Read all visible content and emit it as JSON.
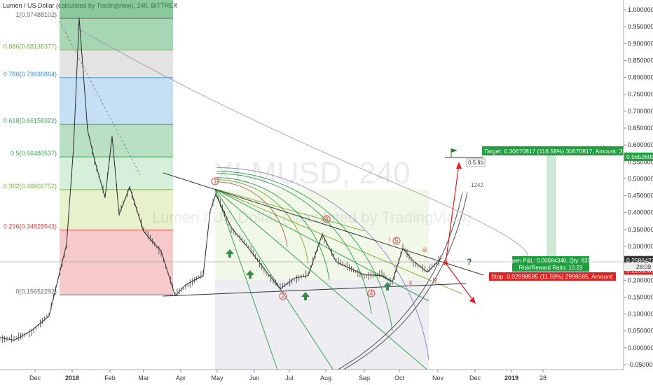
{
  "header": {
    "title": "Lumen / US Dollar (calculated by TradingView), 240, BITTREX"
  },
  "watermark": {
    "symbol": "XLMUSD, 240",
    "subtitle": "Lumen / US Dollar (calculated by TradingView)"
  },
  "chart_data": {
    "type": "line",
    "title": "Lumen / US Dollar (calculated by TradingView), 240, BITTREX",
    "yaxis": {
      "ticks": [
        "1.00000000",
        "0.95000000",
        "0.90000000",
        "0.85000000",
        "0.80000000",
        "0.75000000",
        "0.70000000",
        "0.65000000",
        "0.60000000",
        "0.55000000",
        "0.50000000",
        "0.45000000",
        "0.40000000",
        "0.35000000",
        "0.30000000",
        "0.25000000",
        "0.20000000",
        "0.15000000",
        "0.10000000",
        "0.05000000",
        "0.00000000",
        "-0.05000000"
      ],
      "range": [
        -0.065,
        1.03
      ]
    },
    "xaxis": {
      "ticks": [
        "Dec",
        "2018",
        "Feb",
        "Mar",
        "Apr",
        "May",
        "Jun",
        "Jul",
        "Aug",
        "Sep",
        "Oct",
        "Nov",
        "Dec",
        "2019",
        "28"
      ]
    },
    "fib_levels": [
      {
        "label": "1(0.97488102)",
        "value": 0.97488102,
        "color": "#6b6b6b"
      },
      {
        "label": "0.886(0.88138377)",
        "value": 0.88138377,
        "color": "#7fb241"
      },
      {
        "label": "0.786(0.79936864)",
        "value": 0.79936864,
        "color": "#3a8fd0"
      },
      {
        "label": "0.618(0.66158322)",
        "value": 0.66158322,
        "color": "#3aa556"
      },
      {
        "label": "0.5(0.56480537)",
        "value": 0.56480537,
        "color": "#3aa556"
      },
      {
        "label": "0.382(0.46802752)",
        "value": 0.46802752,
        "color": "#7fb241"
      },
      {
        "label": "0.236(0.34828543)",
        "value": 0.34828543,
        "color": "#d64545"
      },
      {
        "label": "0(0.15652292)",
        "value": 0.15652292,
        "color": "#6b6b6b"
      }
    ],
    "price_series": [
      [
        "Dec",
        0.025
      ],
      [
        "Dec-mid",
        0.04
      ],
      [
        "Dec-late",
        0.1
      ],
      [
        "Jan-early",
        0.3
      ],
      [
        "Jan-peak",
        0.97
      ],
      [
        "Jan-mid",
        0.7
      ],
      [
        "Jan-late",
        0.55
      ],
      [
        "Feb-early",
        0.45
      ],
      [
        "Feb-mid",
        0.6
      ],
      [
        "Feb-late",
        0.38
      ],
      [
        "Mar-early",
        0.35
      ],
      [
        "Mar-mid",
        0.22
      ],
      [
        "Mar-late",
        0.16
      ],
      [
        "Apr-early",
        0.18
      ],
      [
        "Apr-mid",
        0.24
      ],
      [
        "May",
        0.46
      ],
      [
        "May-mid",
        0.33
      ],
      [
        "Jun-early",
        0.3
      ],
      [
        "Jun-mid",
        0.24
      ],
      [
        "Jul",
        0.18
      ],
      [
        "Jul-mid",
        0.2
      ],
      [
        "Jul-late",
        0.34
      ],
      [
        "Aug",
        0.26
      ],
      [
        "Aug-mid",
        0.21
      ],
      [
        "Sep",
        0.22
      ],
      [
        "Sep-mid",
        0.18
      ],
      [
        "Sep-late",
        0.3
      ],
      [
        "Oct",
        0.25
      ],
      [
        "Oct-mid",
        0.23
      ],
      [
        "Oct-late",
        0.26
      ],
      [
        "Nov",
        0.24
      ]
    ],
    "price_labels": [
      {
        "text": "0.56526096",
        "value": 0.56526096,
        "bg": "#1e9e3e"
      },
      {
        "text": "0.25948619",
        "value": 0.25948619,
        "bg": "#1e9e3e"
      },
      {
        "text": "0.25864279",
        "value": 0.25864279,
        "bg": "#333333"
      },
      {
        "text": "0.22865694",
        "value": 0.22865694,
        "bg": "#e01f1f"
      }
    ],
    "last_price_box": {
      "text": "28:09"
    },
    "position": {
      "target": "Target: 0.30670817 (118.58%) 30670817, Amount: 3557.03",
      "open_pl": "Open P&L: 0.00084340, Qty: 8337",
      "risk_reward": "Risk/Reward Ratio: 10.23",
      "stop": "Stop: 0.02998585 (11.59%) 2998585, Amount: 750.01"
    },
    "annotations": {
      "fib_box": "0.5 fib",
      "count": "1242",
      "question": "?",
      "waves_circled": [
        "1",
        "2",
        "3",
        "4",
        "5"
      ],
      "waves_roman": [
        "i",
        "ii",
        "iii",
        "iv",
        "v"
      ]
    }
  }
}
